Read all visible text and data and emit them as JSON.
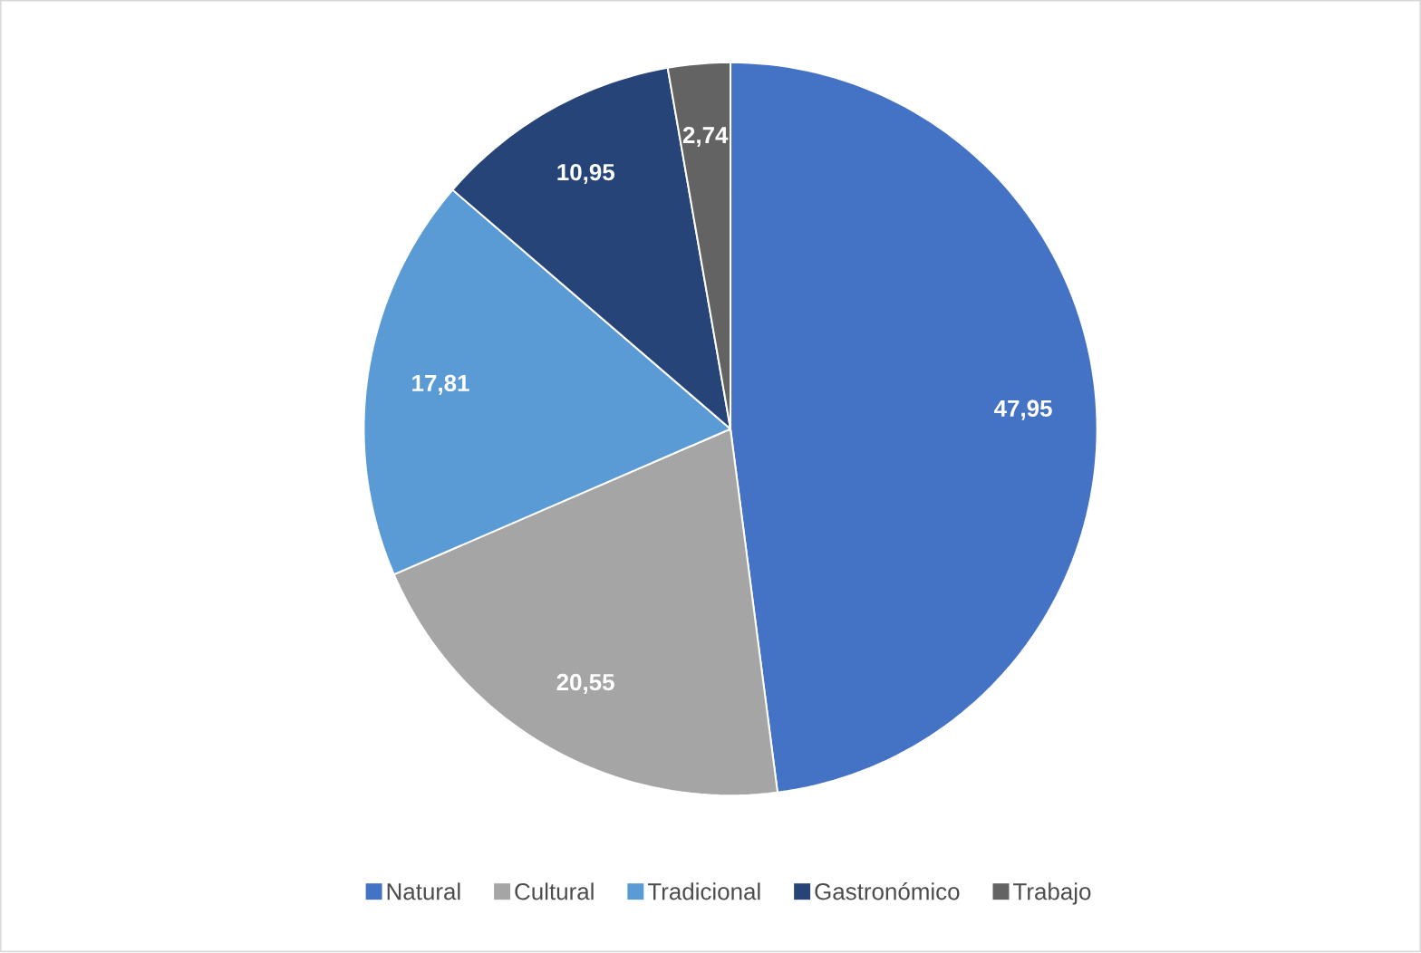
{
  "chart_data": {
    "type": "pie",
    "categories": [
      "Natural",
      "Cultural",
      "Tradicional",
      "Gastronómico",
      "Trabajo"
    ],
    "values": [
      47.95,
      20.55,
      17.81,
      10.95,
      2.74
    ],
    "value_labels": [
      "47,95",
      "20,55",
      "17,81",
      "10,95",
      "2,74"
    ],
    "colors": [
      "#4472c4",
      "#a5a5a5",
      "#5b9bd5",
      "#264478",
      "#636363"
    ],
    "legend": "bottom"
  }
}
